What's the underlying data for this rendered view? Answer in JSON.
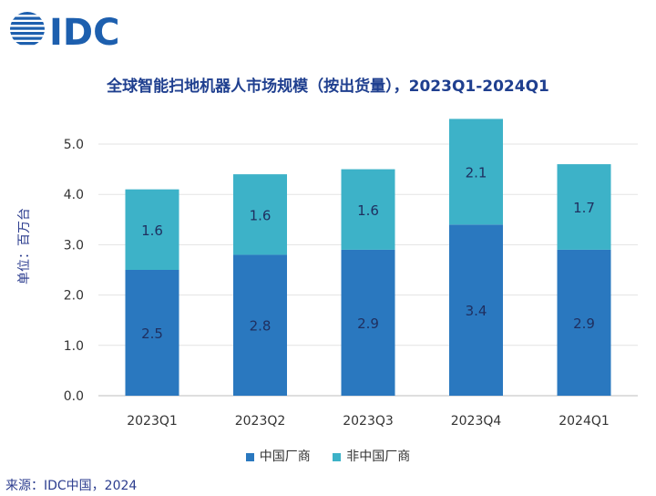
{
  "logo": {
    "text": "IDC"
  },
  "colors": {
    "china": "#2a78bf",
    "non_china": "#3db2c8",
    "title": "#1f3f8f"
  },
  "chart_data": {
    "type": "bar",
    "stacked": true,
    "title": "全球智能扫地机器人市场规模（按出货量），2023Q1-2024Q1",
    "ylabel": "单位：百万台",
    "xlabel": "",
    "ylim": [
      0,
      5.0
    ],
    "yticks": [
      "0.0",
      "1.0",
      "2.0",
      "3.0",
      "4.0",
      "5.0"
    ],
    "categories": [
      "2023Q1",
      "2023Q2",
      "2023Q3",
      "2023Q4",
      "2024Q1"
    ],
    "series": [
      {
        "name": "中国厂商",
        "values": [
          2.5,
          2.8,
          2.9,
          3.4,
          2.9
        ]
      },
      {
        "name": "非中国厂商",
        "values": [
          1.6,
          1.6,
          1.6,
          2.1,
          1.7
        ]
      }
    ],
    "legend_position": "bottom",
    "grid": true
  },
  "source": "来源：IDC中国，2024"
}
